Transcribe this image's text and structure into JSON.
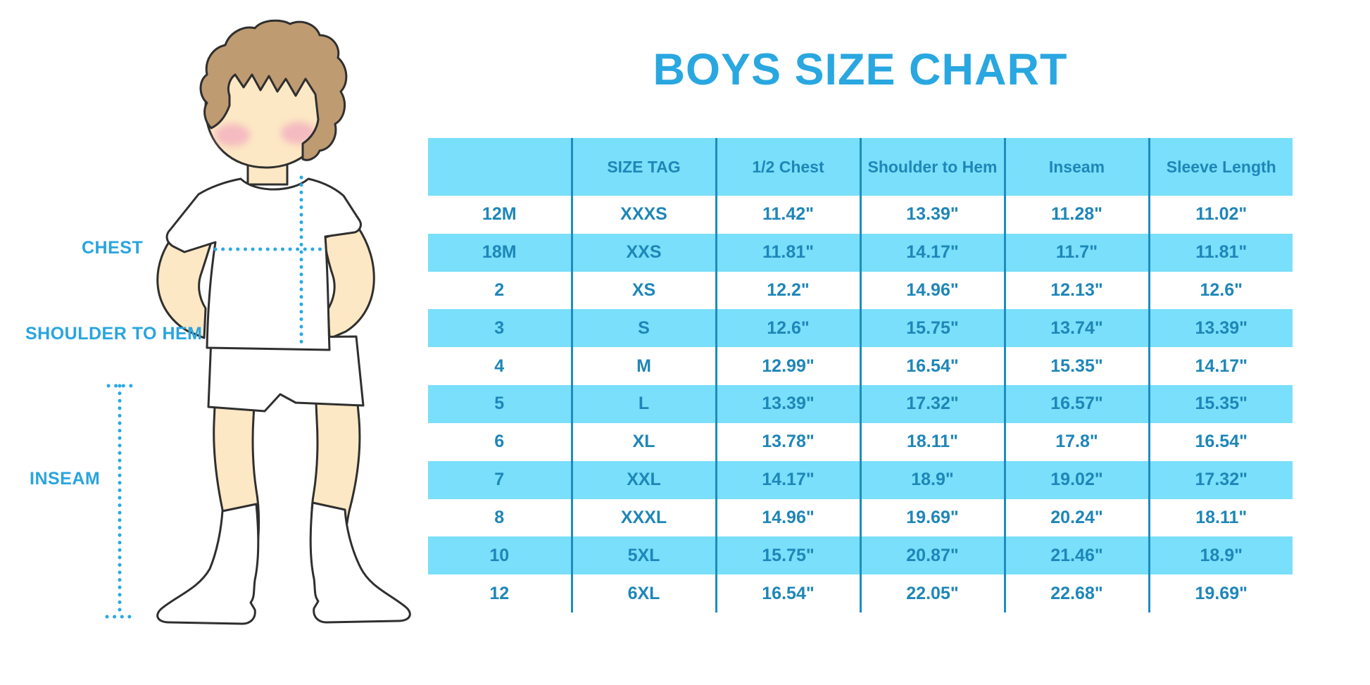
{
  "title": "BOYS SIZE CHART",
  "diagram": {
    "labels": {
      "chest": "CHEST",
      "shoulder_to_hem": "SHOULDER TO HEM",
      "inseam": "INSEAM"
    },
    "figure": "faceless cartoon boy with brown hair, rosy cheeks, white t-shirt, white shorts and white knee socks, hands behind back",
    "measurement_lines": [
      "chest (horizontal dotted)",
      "shoulder-to-hem (vertical dotted)",
      "inseam (vertical dotted with end ticks)"
    ]
  },
  "table": {
    "headers": [
      "",
      "SIZE TAG",
      "1/2 Chest",
      "Shoulder to Hem",
      "Inseam",
      "Sleeve Length"
    ],
    "rows": [
      [
        "12M",
        "XXXS",
        "11.42\"",
        "13.39\"",
        "11.28\"",
        "11.02\""
      ],
      [
        "18M",
        "XXS",
        "11.81\"",
        "14.17\"",
        "11.7\"",
        "11.81\""
      ],
      [
        "2",
        "XS",
        "12.2\"",
        "14.96\"",
        "12.13\"",
        "12.6\""
      ],
      [
        "3",
        "S",
        "12.6\"",
        "15.75\"",
        "13.74\"",
        "13.39\""
      ],
      [
        "4",
        "M",
        "12.99\"",
        "16.54\"",
        "15.35\"",
        "14.17\""
      ],
      [
        "5",
        "L",
        "13.39\"",
        "17.32\"",
        "16.57\"",
        "15.35\""
      ],
      [
        "6",
        "XL",
        "13.78\"",
        "18.11\"",
        "17.8\"",
        "16.54\""
      ],
      [
        "7",
        "XXL",
        "14.17\"",
        "18.9\"",
        "19.02\"",
        "17.32\""
      ],
      [
        "8",
        "XXXL",
        "14.96\"",
        "19.69\"",
        "20.24\"",
        "18.11\""
      ],
      [
        "10",
        "5XL",
        "15.75\"",
        "20.87\"",
        "21.46\"",
        "18.9\""
      ],
      [
        "12",
        "6XL",
        "16.54\"",
        "22.05\"",
        "22.68\"",
        "19.69\""
      ]
    ]
  },
  "colors": {
    "title": "#29a7e0",
    "label": "#29a4e0",
    "table_text": "#1e86b8",
    "table_line": "#1e8cbe",
    "stripe": "#79dffa",
    "dotted_line": "#2aa9e4",
    "skin": "#fce8c4",
    "hair": "#bf9b72",
    "blush": "#f2a8bf",
    "outline": "#2f2f2f"
  }
}
